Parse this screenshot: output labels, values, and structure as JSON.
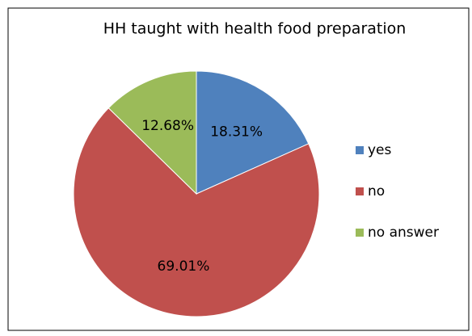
{
  "chart_data": {
    "type": "pie",
    "title": "HH taught with health food preparation",
    "categories": [
      "yes",
      "no",
      "no answer"
    ],
    "values": [
      18.31,
      69.01,
      12.68
    ],
    "value_labels": [
      "18.31%",
      "69.01%",
      "12.68%"
    ],
    "colors": [
      "#4f81bd",
      "#c0504d",
      "#9bbb59"
    ],
    "legend": "right"
  }
}
